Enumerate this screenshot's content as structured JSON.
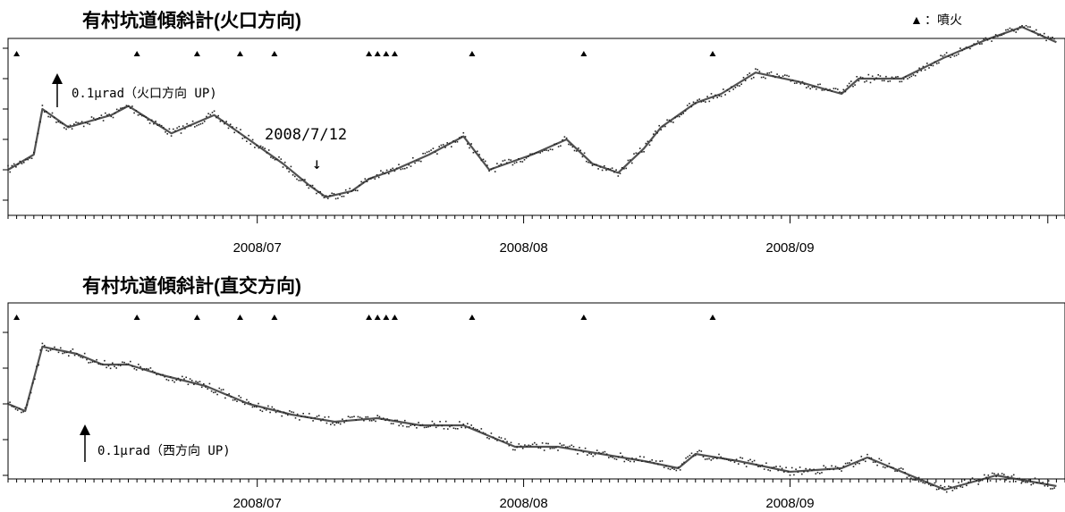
{
  "legend": {
    "marker": "▲",
    "label": "：噴火"
  },
  "chart_data": [
    {
      "type": "scatter",
      "title": "有村坑道傾斜計(火口方向)",
      "xlabel": "",
      "ylabel": "",
      "x_range": [
        "2008-06-02",
        "2008-10-03"
      ],
      "x_tick_labels": [
        {
          "label": "2008/07",
          "date": "2008-07-01"
        },
        {
          "label": "2008/08",
          "date": "2008-08-01"
        },
        {
          "label": "2008/09",
          "date": "2008-09-01"
        }
      ],
      "eruption_dates": [
        "2008-06-03",
        "2008-06-17",
        "2008-06-24",
        "2008-06-29",
        "2008-07-03",
        "2008-07-14",
        "2008-07-15",
        "2008-07-16",
        "2008-07-17",
        "2008-07-26",
        "2008-08-08",
        "2008-08-23"
      ],
      "series": [
        {
          "points": [
            [
              "2008-06-02",
              0.0
            ],
            [
              "2008-06-05",
              0.05
            ],
            [
              "2008-06-06",
              0.2
            ],
            [
              "2008-06-09",
              0.14
            ],
            [
              "2008-06-14",
              0.18
            ],
            [
              "2008-06-16",
              0.21
            ],
            [
              "2008-06-21",
              0.12
            ],
            [
              "2008-06-26",
              0.18
            ],
            [
              "2008-06-30",
              0.1
            ],
            [
              "2008-07-04",
              0.02
            ],
            [
              "2008-07-07",
              -0.05
            ],
            [
              "2008-07-09",
              -0.09
            ],
            [
              "2008-07-12",
              -0.07
            ],
            [
              "2008-07-14",
              -0.03
            ],
            [
              "2008-07-17",
              0.0
            ],
            [
              "2008-07-21",
              0.05
            ],
            [
              "2008-07-25",
              0.11
            ],
            [
              "2008-07-28",
              0.0
            ],
            [
              "2008-08-02",
              0.05
            ],
            [
              "2008-08-06",
              0.1
            ],
            [
              "2008-08-09",
              0.02
            ],
            [
              "2008-08-12",
              -0.01
            ],
            [
              "2008-08-15",
              0.07
            ],
            [
              "2008-08-17",
              0.14
            ],
            [
              "2008-08-21",
              0.22
            ],
            [
              "2008-08-24",
              0.25
            ],
            [
              "2008-08-28",
              0.32
            ],
            [
              "2008-09-02",
              0.29
            ],
            [
              "2008-09-07",
              0.25
            ],
            [
              "2008-09-09",
              0.3
            ],
            [
              "2008-09-14",
              0.3
            ],
            [
              "2008-09-19",
              0.37
            ],
            [
              "2008-09-24",
              0.43
            ],
            [
              "2008-09-28",
              0.47
            ],
            [
              "2008-10-02",
              0.42
            ]
          ]
        }
      ],
      "annotations": [
        {
          "text": "2008/7/12",
          "date": "2008-07-12",
          "arrow": "↓"
        },
        {
          "text": "0.1μrad（火口方向 UP)",
          "value": 0.1
        }
      ]
    },
    {
      "type": "scatter",
      "title": "有村坑道傾斜計(直交方向)",
      "xlabel": "",
      "ylabel": "",
      "x_range": [
        "2008-06-02",
        "2008-10-03"
      ],
      "x_tick_labels": [
        {
          "label": "2008/07",
          "date": "2008-07-01"
        },
        {
          "label": "2008/08",
          "date": "2008-08-01"
        },
        {
          "label": "2008/09",
          "date": "2008-09-01"
        }
      ],
      "eruption_dates": [
        "2008-06-03",
        "2008-06-17",
        "2008-06-24",
        "2008-06-29",
        "2008-07-03",
        "2008-07-14",
        "2008-07-15",
        "2008-07-16",
        "2008-07-17",
        "2008-07-26",
        "2008-08-08",
        "2008-08-23"
      ],
      "series": [
        {
          "points": [
            [
              "2008-06-02",
              0.0
            ],
            [
              "2008-06-04",
              -0.02
            ],
            [
              "2008-06-06",
              0.16
            ],
            [
              "2008-06-10",
              0.14
            ],
            [
              "2008-06-13",
              0.11
            ],
            [
              "2008-06-16",
              0.11
            ],
            [
              "2008-06-20",
              0.08
            ],
            [
              "2008-06-25",
              0.05
            ],
            [
              "2008-06-30",
              0.0
            ],
            [
              "2008-07-05",
              -0.03
            ],
            [
              "2008-07-10",
              -0.05
            ],
            [
              "2008-07-15",
              -0.04
            ],
            [
              "2008-07-20",
              -0.06
            ],
            [
              "2008-07-25",
              -0.06
            ],
            [
              "2008-07-31",
              -0.12
            ],
            [
              "2008-08-05",
              -0.12
            ],
            [
              "2008-08-10",
              -0.14
            ],
            [
              "2008-08-15",
              -0.16
            ],
            [
              "2008-08-19",
              -0.18
            ],
            [
              "2008-08-21",
              -0.14
            ],
            [
              "2008-08-26",
              -0.16
            ],
            [
              "2008-09-01",
              -0.19
            ],
            [
              "2008-09-07",
              -0.18
            ],
            [
              "2008-09-10",
              -0.15
            ],
            [
              "2008-09-13",
              -0.18
            ],
            [
              "2008-09-16",
              -0.21
            ],
            [
              "2008-09-19",
              -0.24
            ],
            [
              "2008-09-25",
              -0.2
            ],
            [
              "2008-10-02",
              -0.23
            ]
          ]
        }
      ],
      "annotations": [
        {
          "text": "0.1μrad（西方向 UP)",
          "value": 0.1
        }
      ]
    }
  ]
}
